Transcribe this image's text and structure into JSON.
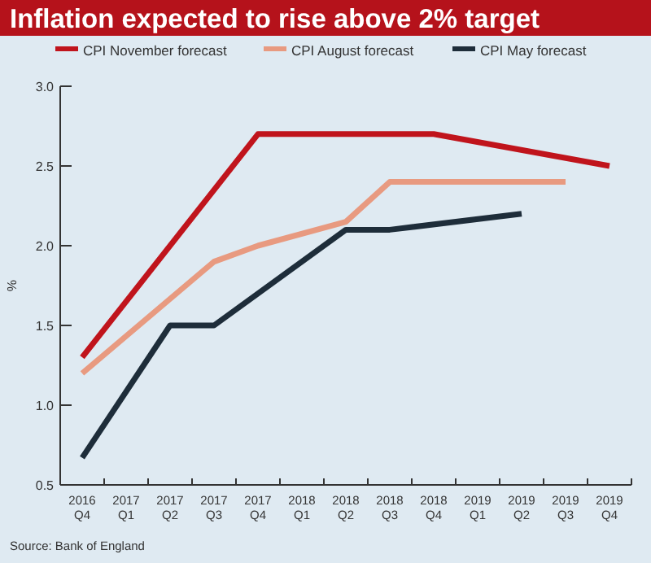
{
  "chart_data": {
    "type": "line",
    "title": "Inflation expected to rise above 2% target",
    "ylabel": "%",
    "categories": [
      "2016\nQ4",
      "2017\nQ1",
      "2017\nQ2",
      "2017\nQ3",
      "2017\nQ4",
      "2018\nQ1",
      "2018\nQ2",
      "2018\nQ3",
      "2018\nQ4",
      "2019\nQ1",
      "2019\nQ2",
      "2019\nQ3",
      "2019\nQ4"
    ],
    "series": [
      {
        "name": "CPI November forecast",
        "color": "#c0141c",
        "values": [
          1.3,
          null,
          null,
          null,
          2.7,
          null,
          null,
          null,
          2.7,
          null,
          null,
          null,
          2.5
        ]
      },
      {
        "name": "CPI August forecast",
        "color": "#e89a80",
        "values": [
          1.2,
          null,
          null,
          1.9,
          2.0,
          null,
          2.15,
          2.4,
          null,
          null,
          null,
          2.4,
          null
        ]
      },
      {
        "name": "CPI May forecast",
        "color": "#1e2d3a",
        "values": [
          0.67,
          null,
          1.5,
          1.5,
          null,
          null,
          2.1,
          2.1,
          null,
          null,
          2.2,
          null,
          null
        ]
      }
    ],
    "ylim": [
      0.5,
      3.0
    ],
    "yticks": [
      0.5,
      {
        "value": 1,
        "label": "1.0"
      },
      1.5,
      {
        "value": 2,
        "label": "2.0"
      },
      2.5,
      {
        "value": 3,
        "label": "3.0"
      }
    ],
    "grid": false,
    "legend": "top",
    "line_style": "solid",
    "marker": "none",
    "annotations": [
      "Source: Bank of England"
    ]
  }
}
